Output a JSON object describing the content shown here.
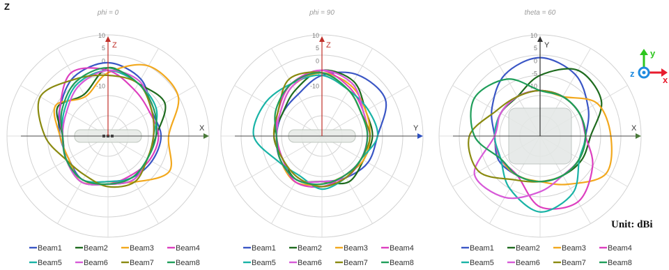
{
  "figure_label": "Z",
  "unit_label": "Unit: dBi",
  "chart_data": [
    {
      "type": "polar",
      "title": "phi = 0",
      "r_ticks": [
        "10",
        "5",
        "0",
        "-5",
        "-10"
      ],
      "r_range": [
        -30,
        10
      ],
      "axis_h": "X",
      "axis_v": "Z",
      "legend_labels": [
        "Beam1",
        "Beam2",
        "Beam3",
        "Beam4",
        "Beam5",
        "Beam6",
        "Beam7",
        "Beam8"
      ],
      "series": [
        {
          "name": "Beam1",
          "color": "#3a56c5",
          "angles": [
            0,
            30,
            60,
            90,
            120,
            150,
            180,
            210,
            240,
            270,
            300,
            330
          ],
          "values": [
            -9,
            -10,
            -4,
            -1,
            -3,
            -8,
            -11,
            -12,
            -10,
            -12,
            -11,
            -10
          ]
        },
        {
          "name": "Beam2",
          "color": "#1e6b1e",
          "angles": [
            0,
            30,
            60,
            90,
            120,
            150,
            180,
            210,
            240,
            270,
            300,
            330
          ],
          "values": [
            -11,
            -4,
            -6,
            -3,
            -11,
            -7,
            -12,
            -11,
            -9,
            -11,
            -10,
            -12
          ]
        },
        {
          "name": "Beam3",
          "color": "#f2a81d",
          "angles": [
            0,
            30,
            60,
            90,
            120,
            150,
            180,
            210,
            240,
            270,
            300,
            330
          ],
          "values": [
            -6,
            2,
            2,
            -5,
            -12,
            -6,
            -11,
            -12,
            -9,
            -12,
            -9,
            -2
          ]
        },
        {
          "name": "Beam4",
          "color": "#dd3fbf",
          "angles": [
            0,
            30,
            60,
            90,
            120,
            150,
            180,
            210,
            240,
            270,
            300,
            330
          ],
          "values": [
            -10,
            -11,
            -9,
            -4,
            -1,
            -8,
            -12,
            -11,
            -10,
            -11,
            -12,
            -11
          ]
        },
        {
          "name": "Beam5",
          "color": "#19b3a6",
          "angles": [
            0,
            30,
            60,
            90,
            120,
            150,
            180,
            210,
            240,
            270,
            300,
            330
          ],
          "values": [
            -12,
            -8,
            -6,
            -4,
            -6,
            -10,
            -12,
            -11,
            -10,
            -12,
            -11,
            -12
          ]
        },
        {
          "name": "Beam6",
          "color": "#d75ad8",
          "angles": [
            0,
            30,
            60,
            90,
            120,
            150,
            180,
            210,
            240,
            270,
            300,
            330
          ],
          "values": [
            -12,
            -10,
            -5,
            -4,
            -7,
            -11,
            -12,
            -11,
            -9,
            -11,
            -10,
            -12
          ]
        },
        {
          "name": "Beam7",
          "color": "#8a8a10",
          "angles": [
            0,
            30,
            60,
            90,
            120,
            150,
            180,
            210,
            240,
            270,
            300,
            330
          ],
          "values": [
            -12,
            -10,
            -6,
            -6,
            -4,
            1,
            -5,
            -11,
            -12,
            -10,
            -9,
            -12
          ]
        },
        {
          "name": "Beam8",
          "color": "#1f9e5a",
          "angles": [
            0,
            30,
            60,
            90,
            120,
            150,
            180,
            210,
            240,
            270,
            300,
            330
          ],
          "values": [
            -11,
            -9,
            -6,
            -3,
            -5,
            -9,
            -12,
            -11,
            -10,
            -11,
            -11,
            -12
          ]
        }
      ]
    },
    {
      "type": "polar",
      "title": "phi = 90",
      "r_ticks": [
        "10",
        "5",
        "0",
        "-5",
        "-10"
      ],
      "r_range": [
        -30,
        10
      ],
      "axis_h": "Y",
      "axis_v": "Z",
      "legend_labels": [
        "Beam1",
        "Beam2",
        "Beam3",
        "Beam4",
        "Beam5",
        "Beam6",
        "Beam7",
        "Beam8"
      ],
      "series": [
        {
          "name": "Beam1",
          "color": "#3a56c5",
          "angles": [
            0,
            30,
            60,
            90,
            120,
            150,
            180,
            210,
            240,
            270,
            300,
            330
          ],
          "values": [
            -8,
            -1,
            -2,
            -6,
            -11,
            -12,
            -12,
            -11,
            -10,
            -12,
            -11,
            -9
          ]
        },
        {
          "name": "Beam2",
          "color": "#1e6b1e",
          "angles": [
            0,
            30,
            60,
            90,
            120,
            150,
            180,
            210,
            240,
            270,
            300,
            330
          ],
          "values": [
            -10,
            -10,
            -5,
            -4,
            -9,
            -12,
            -11,
            -12,
            -10,
            -12,
            -9,
            -11
          ]
        },
        {
          "name": "Beam3",
          "color": "#f2a81d",
          "angles": [
            0,
            30,
            60,
            90,
            120,
            150,
            180,
            210,
            240,
            270,
            300,
            330
          ],
          "values": [
            -11,
            -10,
            -7,
            -5,
            -7,
            -11,
            -12,
            -11,
            -9,
            -11,
            -12,
            -11
          ]
        },
        {
          "name": "Beam4",
          "color": "#dd3fbf",
          "angles": [
            0,
            30,
            60,
            90,
            120,
            150,
            180,
            210,
            240,
            270,
            300,
            330
          ],
          "values": [
            -12,
            -11,
            -8,
            -4,
            -6,
            -10,
            -12,
            -12,
            -9,
            -10,
            -12,
            -12
          ]
        },
        {
          "name": "Beam5",
          "color": "#19b3a6",
          "angles": [
            0,
            30,
            60,
            90,
            120,
            150,
            180,
            210,
            240,
            270,
            300,
            330
          ],
          "values": [
            -8,
            -9,
            -9,
            -6,
            -6,
            -4,
            -3,
            -10,
            -12,
            -9,
            -11,
            -12
          ]
        },
        {
          "name": "Beam6",
          "color": "#d75ad8",
          "angles": [
            0,
            30,
            60,
            90,
            120,
            150,
            180,
            210,
            240,
            270,
            300,
            330
          ],
          "values": [
            -12,
            -11,
            -6,
            -4,
            -7,
            -11,
            -12,
            -11,
            -10,
            -12,
            -11,
            -12
          ]
        },
        {
          "name": "Beam7",
          "color": "#8a8a10",
          "angles": [
            0,
            30,
            60,
            90,
            120,
            150,
            180,
            210,
            240,
            270,
            300,
            330
          ],
          "values": [
            -11,
            -12,
            -9,
            -5,
            -4,
            -10,
            -11,
            -12,
            -11,
            -10,
            -11,
            -12
          ]
        },
        {
          "name": "Beam8",
          "color": "#1f9e5a",
          "angles": [
            0,
            30,
            60,
            90,
            120,
            150,
            180,
            210,
            240,
            270,
            300,
            330
          ],
          "values": [
            -12,
            -12,
            -9,
            -5,
            -6,
            -9,
            -12,
            -11,
            -10,
            -11,
            -12,
            -12
          ]
        }
      ]
    },
    {
      "type": "polar",
      "title": "theta = 60",
      "r_ticks": [
        "10",
        "5",
        "0",
        "-5",
        "-10"
      ],
      "r_range": [
        -30,
        10
      ],
      "axis_h": "X",
      "axis_v": "Y",
      "legend_labels": [
        "Beam1",
        "Beam2",
        "Beam3",
        "Beam4",
        "Beam5",
        "Beam6",
        "Beam7",
        "Beam8"
      ],
      "series": [
        {
          "name": "Beam1",
          "color": "#3a56c5",
          "angles": [
            0,
            30,
            60,
            90,
            120,
            150,
            180,
            210,
            240,
            270,
            300,
            330
          ],
          "values": [
            -12,
            -8,
            -2,
            1,
            -2,
            -8,
            -12,
            -11,
            -12,
            -12,
            -12,
            -12
          ]
        },
        {
          "name": "Beam2",
          "color": "#1e6b1e",
          "angles": [
            0,
            30,
            60,
            90,
            120,
            150,
            180,
            210,
            240,
            270,
            300,
            330
          ],
          "values": [
            -10,
            -2,
            0,
            -6,
            -12,
            -12,
            -12,
            -12,
            -12,
            -12,
            -12,
            -11
          ]
        },
        {
          "name": "Beam3",
          "color": "#f2a81d",
          "angles": [
            0,
            30,
            60,
            90,
            120,
            150,
            180,
            210,
            240,
            270,
            300,
            330
          ],
          "values": [
            -2,
            -4,
            -12,
            -12,
            -12,
            -12,
            -12,
            -12,
            -12,
            -12,
            -8,
            0
          ]
        },
        {
          "name": "Beam4",
          "color": "#dd3fbf",
          "angles": [
            0,
            30,
            60,
            90,
            120,
            150,
            180,
            210,
            240,
            270,
            300,
            330
          ],
          "values": [
            -12,
            -12,
            -12,
            -12,
            -12,
            -12,
            -12,
            -12,
            -12,
            -2,
            0,
            -6
          ]
        },
        {
          "name": "Beam5",
          "color": "#19b3a6",
          "angles": [
            0,
            30,
            60,
            90,
            120,
            150,
            180,
            210,
            240,
            270,
            300,
            330
          ],
          "values": [
            -12,
            -12,
            -12,
            -12,
            -12,
            -12,
            -12,
            -12,
            -6,
            0,
            -4,
            -12
          ]
        },
        {
          "name": "Beam6",
          "color": "#d75ad8",
          "angles": [
            0,
            30,
            60,
            90,
            120,
            150,
            180,
            210,
            240,
            270,
            300,
            330
          ],
          "values": [
            -12,
            -12,
            -12,
            -12,
            -12,
            -12,
            -12,
            0,
            -2,
            -8,
            -12,
            -12
          ]
        },
        {
          "name": "Beam7",
          "color": "#8a8a10",
          "angles": [
            0,
            30,
            60,
            90,
            120,
            150,
            180,
            210,
            240,
            270,
            300,
            330
          ],
          "values": [
            -12,
            -12,
            -12,
            -12,
            -12,
            -10,
            -2,
            -2,
            -10,
            -12,
            -12,
            -12
          ]
        },
        {
          "name": "Beam8",
          "color": "#1f9e5a",
          "angles": [
            0,
            30,
            60,
            90,
            120,
            150,
            180,
            210,
            240,
            270,
            300,
            330
          ],
          "values": [
            -12,
            -12,
            -12,
            -12,
            -4,
            0,
            -4,
            -12,
            -12,
            -12,
            -12,
            -12
          ]
        }
      ]
    }
  ],
  "orientation_icon": {
    "label_y": "y",
    "label_z": "z",
    "label_x": "x",
    "color_y": "#2ec61f",
    "color_z": "#1e8be0",
    "color_x": "#e81c2e"
  }
}
